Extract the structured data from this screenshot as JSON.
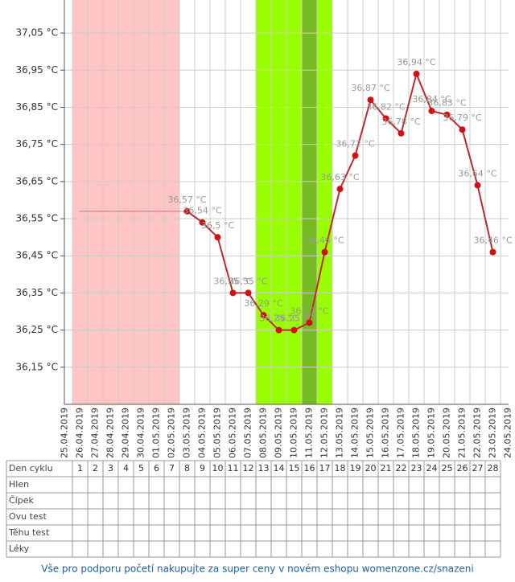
{
  "chart_data": {
    "type": "line",
    "categories": [
      "25.04.2019",
      "26.04.2019",
      "27.04.2019",
      "28.04.2019",
      "29.04.2019",
      "30.04.2019",
      "01.05.2019",
      "02.05.2019",
      "03.05.2019",
      "04.05.2019",
      "05.05.2019",
      "06.05.2019",
      "07.05.2019",
      "08.05.2019",
      "09.05.2019",
      "10.05.2019",
      "11.05.2019",
      "12.05.2019",
      "13.05.2019",
      "14.05.2019",
      "15.05.2019",
      "16.05.2019",
      "17.05.2019",
      "18.05.2019",
      "19.05.2019",
      "20.05.2019",
      "21.05.2019",
      "22.05.2019",
      "23.05.2019",
      "24.05.2019"
    ],
    "values": [
      null,
      null,
      null,
      null,
      null,
      null,
      null,
      null,
      36.57,
      36.54,
      36.5,
      36.35,
      36.35,
      36.29,
      36.25,
      36.25,
      36.27,
      36.46,
      36.63,
      36.72,
      36.87,
      36.82,
      36.78,
      36.94,
      36.84,
      36.83,
      36.79,
      36.64,
      36.46,
      null
    ],
    "value_labels": [
      null,
      null,
      null,
      null,
      null,
      null,
      null,
      null,
      "36,57 °C",
      "36,54 °C",
      "36,5 °C",
      "36,35 °C",
      "36,35 °C",
      "36,29 °C",
      "36,25 °C",
      "36,25 °C",
      "36,27 °C",
      "36,46 °C",
      "36,63 °C",
      "36,72 °C",
      "36,87 °C",
      "36,82 °C",
      "36,78 °C",
      "36,94 °C",
      "36,84 °C",
      "36,83 °C",
      "36,79 °C",
      "36,64 °C",
      "36,46 °C",
      null
    ],
    "color": "#c0282c",
    "marker_color": "#d40f12",
    "ylim": [
      36.05,
      37.139
    ],
    "yticks": [
      {
        "value": 37.05,
        "label": "37,05 °C"
      },
      {
        "value": 36.95,
        "label": "36,95 °C"
      },
      {
        "value": 36.85,
        "label": "36,85 °C"
      },
      {
        "value": 36.75,
        "label": "36,75 °C"
      },
      {
        "value": 36.65,
        "label": "36,65 °C"
      },
      {
        "value": 36.55,
        "label": "36,55 °C"
      },
      {
        "value": 36.45,
        "label": "36,45 °C"
      },
      {
        "value": 36.35,
        "label": "36,35 °C"
      },
      {
        "value": 36.25,
        "label": "36,25 °C"
      },
      {
        "value": 36.15,
        "label": "36,15 °C"
      }
    ],
    "grid": true,
    "regions": [
      {
        "start": 1,
        "end": 7,
        "color": "#ffc4c4"
      },
      {
        "start": 13,
        "end": 17,
        "color": "#99ff00"
      },
      {
        "start": 16,
        "end": 16,
        "color": "#77bb22"
      }
    ],
    "coverline": {
      "value": 36.57,
      "start": 1,
      "end": 8,
      "color": "#a02020"
    }
  },
  "table": {
    "rows": [
      {
        "label": "Den cyklu",
        "cells": [
          1,
          2,
          3,
          4,
          5,
          6,
          7,
          8,
          9,
          10,
          11,
          12,
          13,
          14,
          15,
          16,
          17,
          18,
          19,
          20,
          21,
          22,
          23,
          24,
          25,
          26,
          27,
          28
        ]
      },
      {
        "label": "Hlen"
      },
      {
        "label": "Čípek"
      },
      {
        "label": "Ovu test"
      },
      {
        "label": "Těhu test"
      },
      {
        "label": "Léky"
      }
    ]
  },
  "footer": "Vše pro podporu početí nakupujte za super ceny v novém eshopu womenzone.cz/snazeni"
}
